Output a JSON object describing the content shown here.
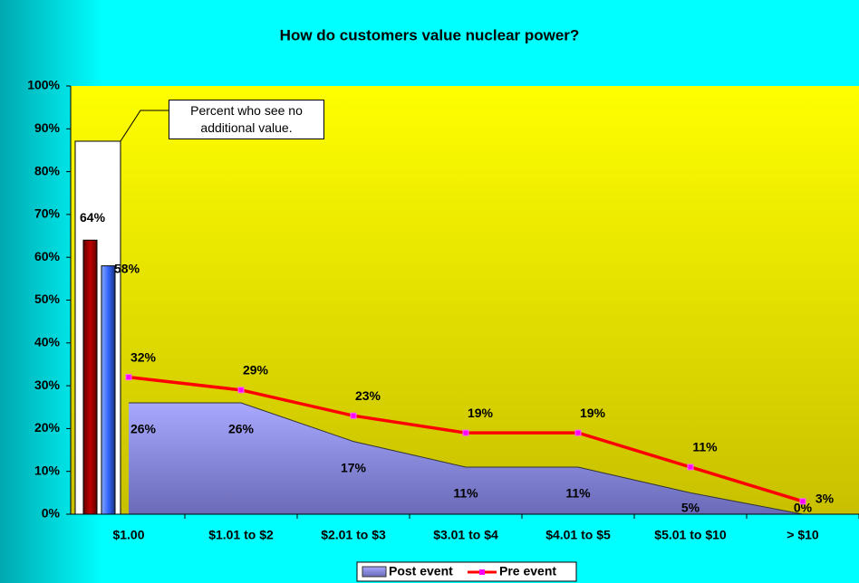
{
  "chart_data": {
    "type": "area_line",
    "title": "How do customers value nuclear power?",
    "categories": [
      "$1.00",
      "$1.01 to $2",
      "$2.01 to $3",
      "$3.01 to $4",
      "$4.01 to $5",
      "$5.01 to $10",
      "> $10"
    ],
    "series": [
      {
        "name": "Post event",
        "color": "#9999ff",
        "kind": "area",
        "values": [
          26,
          26,
          17,
          11,
          11,
          5,
          0
        ],
        "value_labels": [
          "26%",
          "26%",
          "17%",
          "11%",
          "11%",
          "5%",
          "0%"
        ]
      },
      {
        "name": "Pre event",
        "color": "#ff0000",
        "kind": "line",
        "values": [
          32,
          29,
          23,
          19,
          19,
          11,
          3
        ],
        "value_labels": [
          "32%",
          "29%",
          "23%",
          "19%",
          "19%",
          "11%",
          "3%"
        ]
      }
    ],
    "no_value_bars": {
      "values": [
        64,
        58
      ],
      "value_labels": [
        "64%",
        "58%"
      ],
      "colors": [
        "#c00000",
        "#3366ff"
      ]
    },
    "annotation": "Percent who see no additional value.",
    "ylim": [
      0,
      100
    ],
    "yticks": [
      {
        "value": 0,
        "label": "0%"
      },
      {
        "value": 10,
        "label": "10%"
      },
      {
        "value": 20,
        "label": "20%"
      },
      {
        "value": 30,
        "label": "30%"
      },
      {
        "value": 40,
        "label": "40%"
      },
      {
        "value": 50,
        "label": "50%"
      },
      {
        "value": 60,
        "label": "60%"
      },
      {
        "value": 70,
        "label": "70%"
      },
      {
        "value": 80,
        "label": "80%"
      },
      {
        "value": 90,
        "label": "90%"
      },
      {
        "value": 100,
        "label": "100%"
      }
    ],
    "legend": "bottom"
  }
}
